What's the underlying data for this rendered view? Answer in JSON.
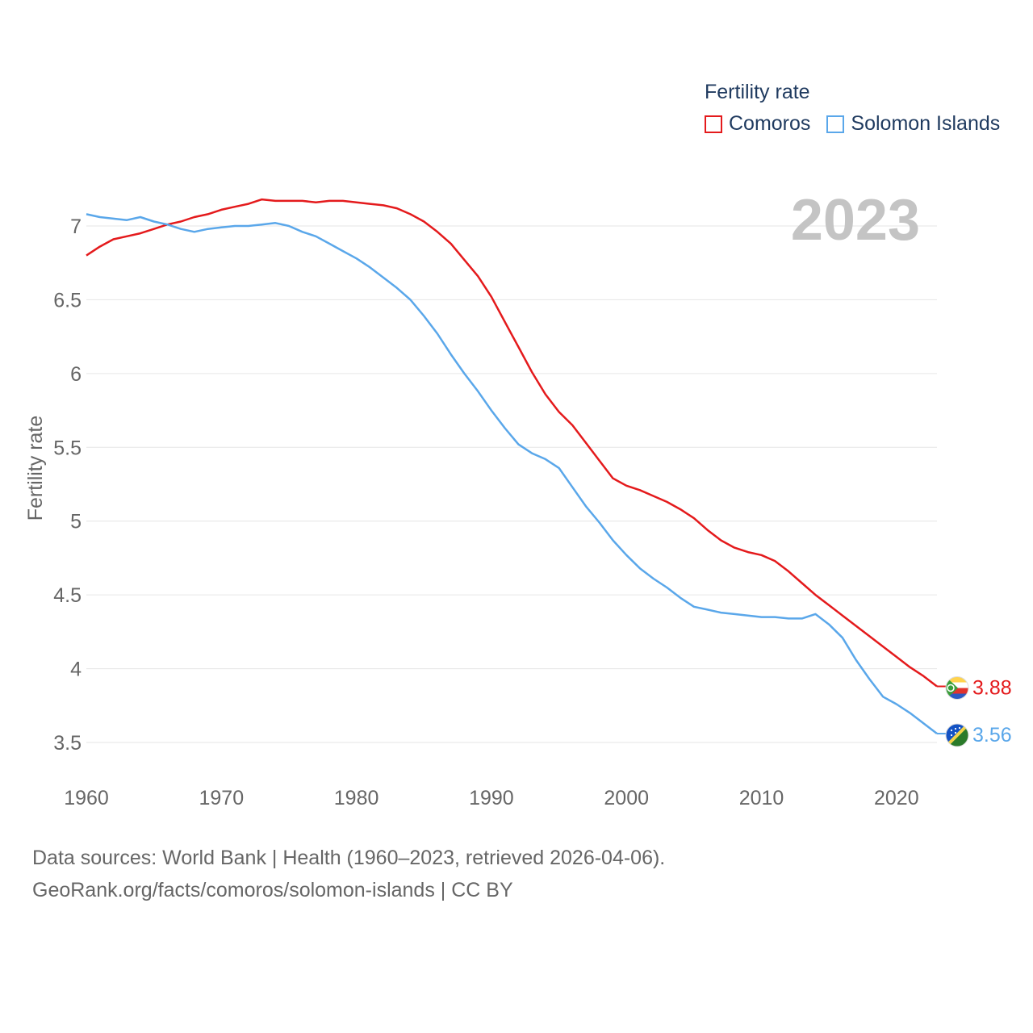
{
  "legend": {
    "title": "Fertility rate",
    "items": [
      {
        "label": "Comoros",
        "color": "#e41a1c"
      },
      {
        "label": "Solomon Islands",
        "color": "#5aa7ea"
      }
    ]
  },
  "year_label": "2023",
  "footer": {
    "line1": "Data sources: World Bank | Health (1960–2023, retrieved 2026-04-06).",
    "line2": "GeoRank.org/facts/comoros/solomon-islands | CC BY"
  },
  "chart_data": {
    "type": "line",
    "title": "Fertility rate",
    "xlabel": "",
    "ylabel": "Fertility rate",
    "xlim": [
      1960,
      2023
    ],
    "ylim": [
      3.5,
      7
    ],
    "grid": true,
    "legend_position": "top-right",
    "x_ticks": [
      1960,
      1970,
      1980,
      1990,
      2000,
      2010,
      2020
    ],
    "y_ticks": [
      3.5,
      4,
      4.5,
      5,
      5.5,
      6,
      6.5,
      7
    ],
    "x_tick_labels": [
      "1960",
      "1970",
      "1980",
      "1990",
      "2000",
      "2010",
      "2020"
    ],
    "y_tick_labels": [
      "3.5",
      "4",
      "4.5",
      "5",
      "5.5",
      "6",
      "6.5",
      "7"
    ],
    "x": [
      1960,
      1961,
      1962,
      1963,
      1964,
      1965,
      1966,
      1967,
      1968,
      1969,
      1970,
      1971,
      1972,
      1973,
      1974,
      1975,
      1976,
      1977,
      1978,
      1979,
      1980,
      1981,
      1982,
      1983,
      1984,
      1985,
      1986,
      1987,
      1988,
      1989,
      1990,
      1991,
      1992,
      1993,
      1994,
      1995,
      1996,
      1997,
      1998,
      1999,
      2000,
      2001,
      2002,
      2003,
      2004,
      2005,
      2006,
      2007,
      2008,
      2009,
      2010,
      2011,
      2012,
      2013,
      2014,
      2015,
      2016,
      2017,
      2018,
      2019,
      2020,
      2021,
      2022,
      2023
    ],
    "series": [
      {
        "name": "Comoros",
        "color": "#e41a1c",
        "end_label": "3.88",
        "values": [
          6.8,
          6.86,
          6.91,
          6.93,
          6.95,
          6.98,
          7.01,
          7.03,
          7.06,
          7.08,
          7.11,
          7.13,
          7.15,
          7.18,
          7.17,
          7.17,
          7.17,
          7.16,
          7.17,
          7.17,
          7.16,
          7.15,
          7.14,
          7.12,
          7.08,
          7.03,
          6.96,
          6.88,
          6.77,
          6.66,
          6.52,
          6.35,
          6.18,
          6.01,
          5.86,
          5.74,
          5.65,
          5.53,
          5.41,
          5.29,
          5.24,
          5.21,
          5.17,
          5.13,
          5.08,
          5.02,
          4.94,
          4.87,
          4.82,
          4.79,
          4.77,
          4.73,
          4.66,
          4.58,
          4.5,
          4.43,
          4.36,
          4.29,
          4.22,
          4.15,
          4.08,
          4.01,
          3.95,
          3.88
        ]
      },
      {
        "name": "Solomon Islands",
        "color": "#5aa7ea",
        "end_label": "3.56",
        "values": [
          7.08,
          7.06,
          7.05,
          7.04,
          7.06,
          7.03,
          7.01,
          6.98,
          6.96,
          6.98,
          6.99,
          7.0,
          7.0,
          7.01,
          7.02,
          7.0,
          6.96,
          6.93,
          6.88,
          6.83,
          6.78,
          6.72,
          6.65,
          6.58,
          6.5,
          6.39,
          6.27,
          6.13,
          6.0,
          5.88,
          5.75,
          5.63,
          5.52,
          5.46,
          5.42,
          5.36,
          5.23,
          5.1,
          4.99,
          4.87,
          4.77,
          4.68,
          4.61,
          4.55,
          4.48,
          4.42,
          4.4,
          4.38,
          4.37,
          4.36,
          4.35,
          4.35,
          4.34,
          4.34,
          4.37,
          4.3,
          4.21,
          4.06,
          3.93,
          3.81,
          3.76,
          3.7,
          3.63,
          3.56
        ]
      }
    ]
  }
}
